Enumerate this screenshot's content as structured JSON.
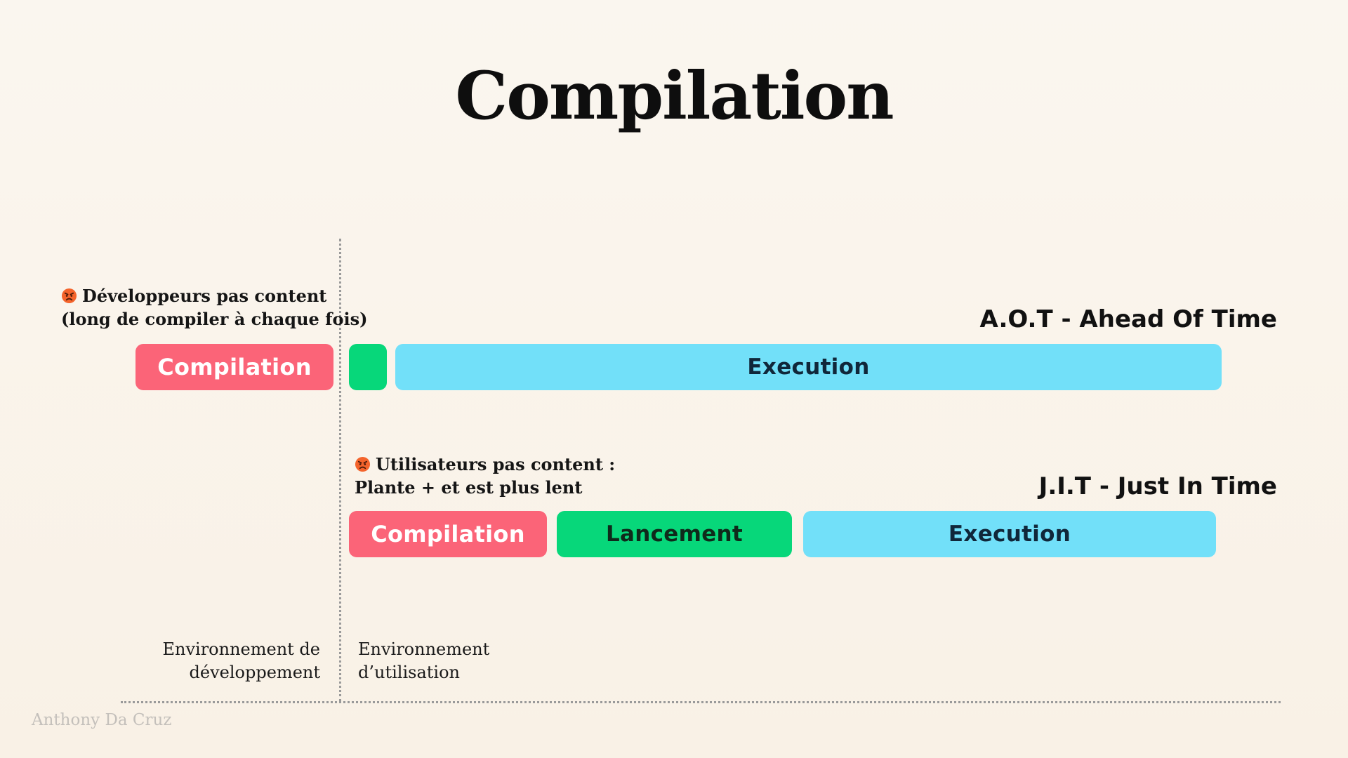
{
  "title": "Compilation",
  "aot": {
    "heading": "A.O.T - Ahead Of  Time",
    "note_line1": "Développeurs pas content",
    "note_line2": "(long de compiler à chaque fois)",
    "note_icon": "angry-face-icon",
    "bars": {
      "compilation": "Compilation",
      "execution": "Execution"
    }
  },
  "jit": {
    "heading": "J.I.T - Just In Time",
    "note_line1": "Utilisateurs pas content :",
    "note_line2": "Plante + et est plus lent",
    "note_icon": "angry-face-icon",
    "bars": {
      "compilation": "Compilation",
      "lancement": "Lancement",
      "execution": "Execution"
    }
  },
  "environments": {
    "dev_line1": "Environnement de",
    "dev_line2": "développement",
    "use_line1": "Environnement",
    "use_line2": "d’utilisation"
  },
  "author": "Anthony Da Cruz",
  "colors": {
    "compilation": "#fb6478",
    "lancement": "#07d77a",
    "execution": "#72e0f9",
    "background": "#faf6ef"
  }
}
